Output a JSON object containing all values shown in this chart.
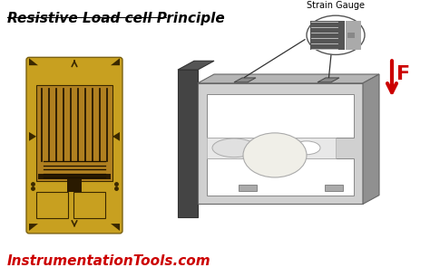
{
  "title": "Resistive Load cell Principle",
  "title_fontsize": 11,
  "watermark_text": "InstrumentationTools.com",
  "watermark_color": "#cc0000",
  "watermark_fontsize": 11,
  "strain_gauge_label": "Strain Gauge",
  "force_label": "F",
  "bg_color": "#ffffff",
  "arrow_color": "#cc0000",
  "gauge_photo_bg": "#c8a020",
  "gauge_dark": "#3a2800",
  "gauge_inner_bg": "#d4a030",
  "lc_front": "#c8c8c8",
  "lc_top": "#b0b0b0",
  "lc_right": "#989898",
  "lc_inner": "#e0e0e0",
  "lc_back_plate": "#555555",
  "sg_callout_dark": "#555555",
  "sg_callout_light": "#dddddd"
}
